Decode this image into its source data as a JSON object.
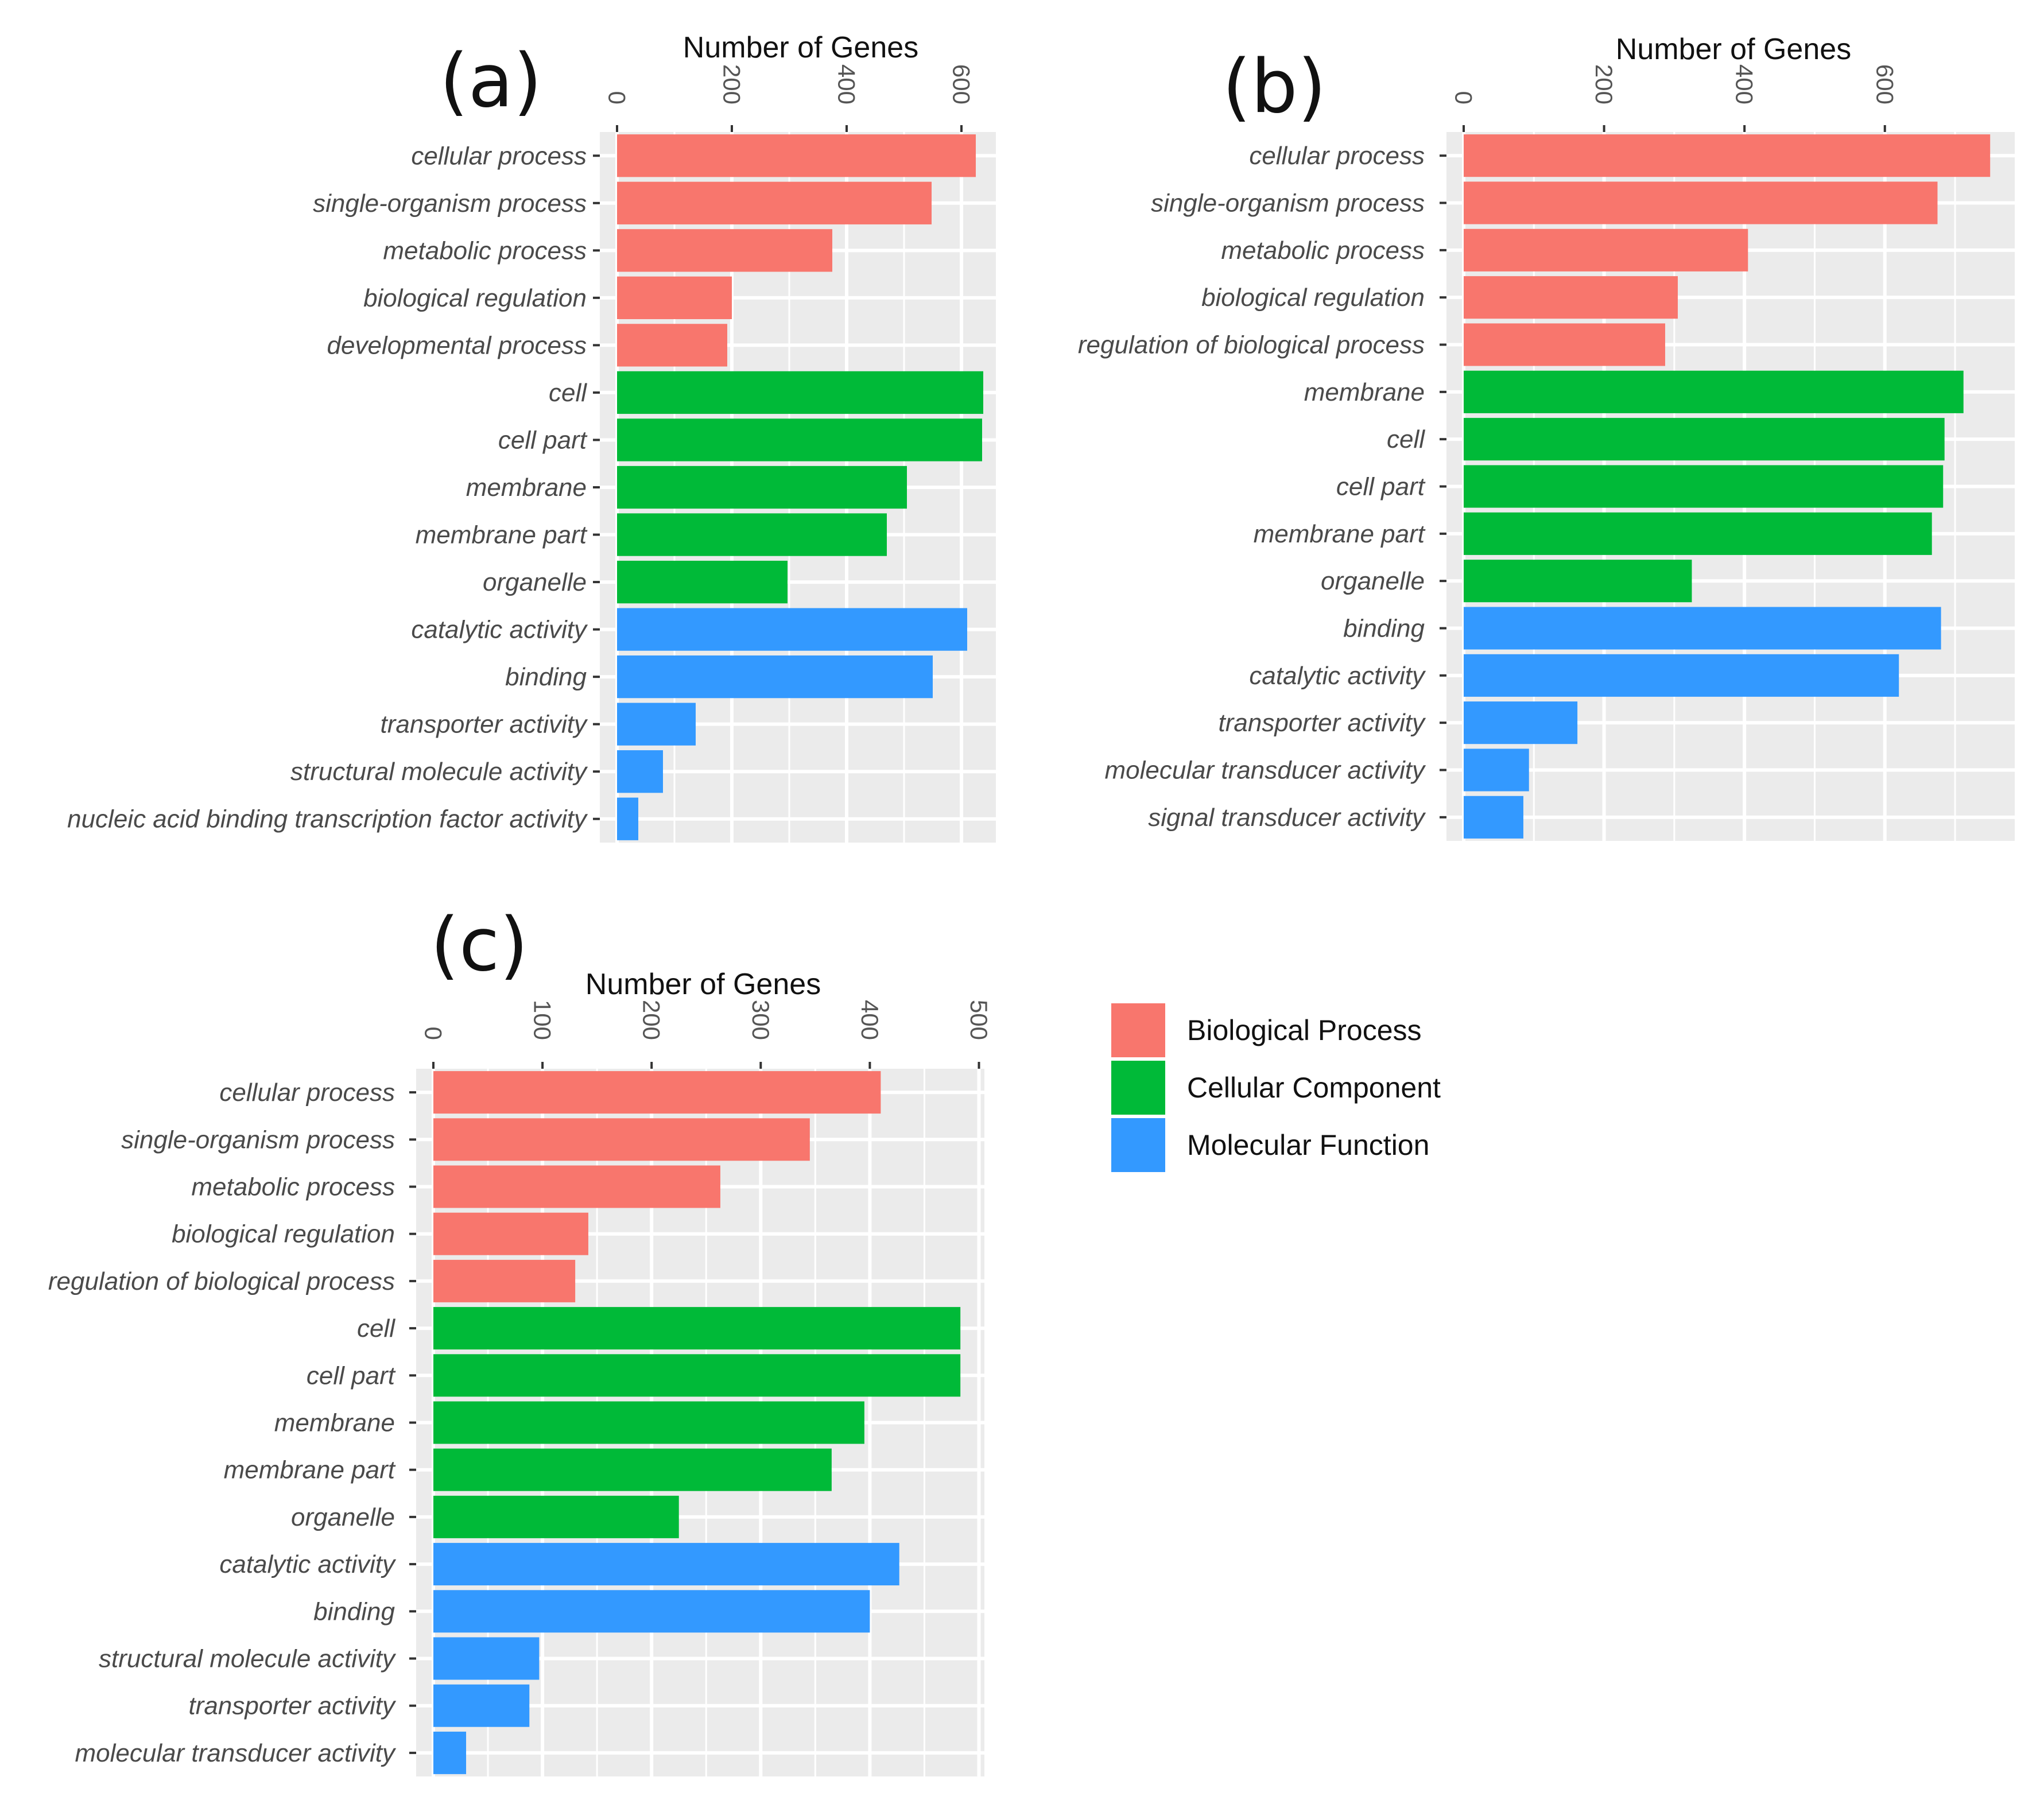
{
  "colors": {
    "Biological Process": "#F8766D",
    "Cellular Component": "#00BA38",
    "Molecular Function": "#3399FF",
    "panel_background": "#EBEBEB",
    "grid_line": "#FFFFFF"
  },
  "legend": {
    "items": [
      {
        "label": "Biological Process"
      },
      {
        "label": "Cellular Component"
      },
      {
        "label": "Molecular Function"
      }
    ]
  },
  "chart_data": [
    {
      "panel": "(a)",
      "type": "bar",
      "orientation": "horizontal",
      "axis_position": "top",
      "xlabel": "Number of Genes",
      "xlim": [
        0,
        660
      ],
      "ticks": [
        0,
        200,
        400,
        600
      ],
      "categories": [
        "cellular process",
        "single-organism process",
        "metabolic process",
        "biological regulation",
        "developmental process",
        "cell",
        "cell part",
        "membrane",
        "membrane part",
        "organelle",
        "catalytic activity",
        "binding",
        "transporter activity",
        "structural molecule activity",
        "nucleic acid binding transcription factor activity"
      ],
      "groups": [
        "Biological Process",
        "Biological Process",
        "Biological Process",
        "Biological Process",
        "Biological Process",
        "Cellular Component",
        "Cellular Component",
        "Cellular Component",
        "Cellular Component",
        "Cellular Component",
        "Molecular Function",
        "Molecular Function",
        "Molecular Function",
        "Molecular Function",
        "Molecular Function"
      ],
      "values": [
        625,
        548,
        375,
        200,
        192,
        638,
        636,
        505,
        470,
        297,
        610,
        550,
        137,
        80,
        37
      ]
    },
    {
      "panel": "(b)",
      "type": "bar",
      "orientation": "horizontal",
      "axis_position": "top",
      "xlabel": "Number of Genes",
      "xlim": [
        0,
        785
      ],
      "ticks": [
        0,
        200,
        400,
        600
      ],
      "categories": [
        "cellular process",
        "single-organism process",
        "metabolic process",
        "biological regulation",
        "regulation of biological process",
        "membrane",
        "cell",
        "cell part",
        "membrane part",
        "organelle",
        "binding",
        "catalytic activity",
        "transporter activity",
        "molecular transducer activity",
        "signal transducer activity"
      ],
      "groups": [
        "Biological Process",
        "Biological Process",
        "Biological Process",
        "Biological Process",
        "Biological Process",
        "Cellular Component",
        "Cellular Component",
        "Cellular Component",
        "Cellular Component",
        "Cellular Component",
        "Molecular Function",
        "Molecular Function",
        "Molecular Function",
        "Molecular Function",
        "Molecular Function"
      ],
      "values": [
        750,
        675,
        405,
        305,
        287,
        712,
        685,
        683,
        667,
        325,
        680,
        620,
        162,
        93,
        85
      ]
    },
    {
      "panel": "(c)",
      "type": "bar",
      "orientation": "horizontal",
      "axis_position": "top",
      "xlabel": "Number of Genes",
      "xlim": [
        0,
        505
      ],
      "ticks": [
        0,
        100,
        200,
        300,
        400,
        500
      ],
      "categories": [
        "cellular process",
        "single-organism process",
        "metabolic process",
        "biological regulation",
        "regulation of biological process",
        "cell",
        "cell part",
        "membrane",
        "membrane part",
        "organelle",
        "catalytic activity",
        "binding",
        "structural molecule activity",
        "transporter activity",
        "molecular transducer activity"
      ],
      "groups": [
        "Biological Process",
        "Biological Process",
        "Biological Process",
        "Biological Process",
        "Biological Process",
        "Cellular Component",
        "Cellular Component",
        "Cellular Component",
        "Cellular Component",
        "Cellular Component",
        "Molecular Function",
        "Molecular Function",
        "Molecular Function",
        "Molecular Function",
        "Molecular Function"
      ],
      "values": [
        410,
        345,
        263,
        142,
        130,
        483,
        483,
        395,
        365,
        225,
        427,
        400,
        97,
        88,
        30
      ]
    }
  ]
}
